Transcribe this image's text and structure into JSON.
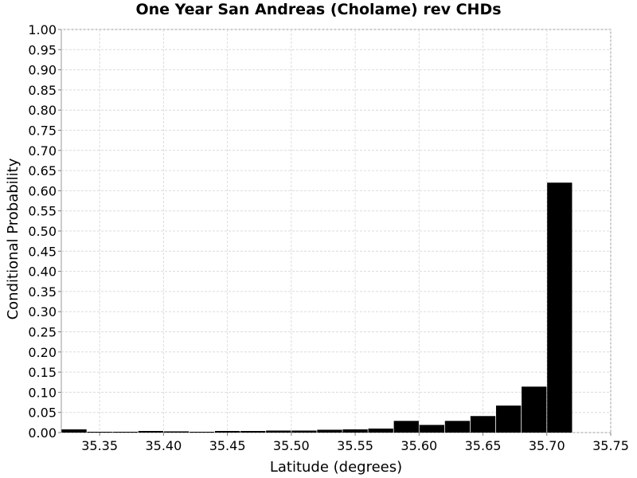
{
  "chart_data": {
    "type": "bar",
    "title": "One Year San Andreas (Cholame) rev CHDs",
    "xlabel": "Latitude (degrees)",
    "ylabel": "Conditional Probability",
    "xlim": [
      35.32,
      35.75
    ],
    "ylim": [
      0.0,
      1.0
    ],
    "bar_width": 0.0195,
    "x": [
      35.33,
      35.35,
      35.37,
      35.39,
      35.41,
      35.43,
      35.45,
      35.47,
      35.49,
      35.51,
      35.53,
      35.55,
      35.57,
      35.59,
      35.61,
      35.63,
      35.65,
      35.67,
      35.69,
      35.71,
      35.73
    ],
    "values": [
      0.008,
      0.002,
      0.002,
      0.004,
      0.003,
      0.002,
      0.004,
      0.004,
      0.005,
      0.005,
      0.007,
      0.008,
      0.01,
      0.029,
      0.019,
      0.029,
      0.041,
      0.067,
      0.114,
      0.62,
      0.0
    ],
    "x_ticks": [
      "35.35",
      "35.40",
      "35.45",
      "35.50",
      "35.55",
      "35.60",
      "35.65",
      "35.70",
      "35.75"
    ],
    "y_ticks": [
      "0.00",
      "0.05",
      "0.10",
      "0.15",
      "0.20",
      "0.25",
      "0.30",
      "0.35",
      "0.40",
      "0.45",
      "0.50",
      "0.55",
      "0.60",
      "0.65",
      "0.70",
      "0.75",
      "0.80",
      "0.85",
      "0.90",
      "0.95",
      "1.00"
    ],
    "grid": true,
    "bar_color": "#000000",
    "grid_color": "#dcdcdc"
  }
}
